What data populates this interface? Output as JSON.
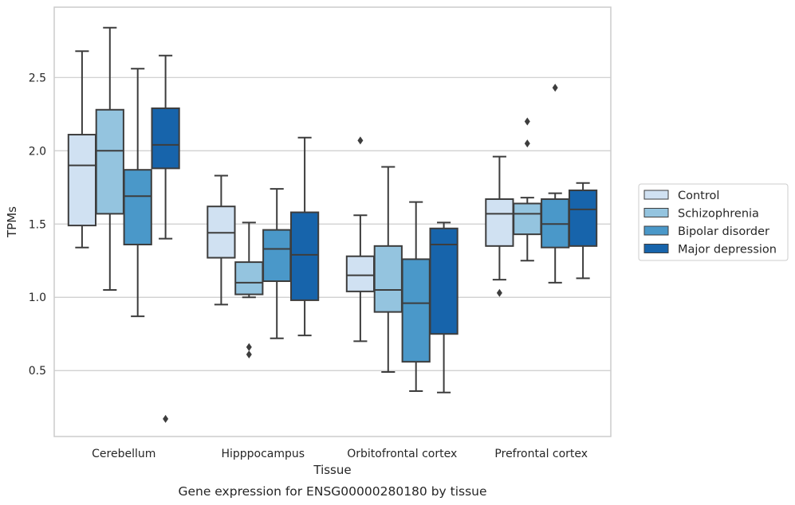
{
  "caption": "Gene expression for ENSG00000280180 by tissue",
  "chart_data": {
    "type": "box",
    "xlabel": "Tissue",
    "ylabel": "TPMs",
    "ylim": [
      0.05,
      2.98
    ],
    "yticks": [
      "0.5",
      "1.0",
      "1.5",
      "2.0",
      "2.5"
    ],
    "grid": "horizontal",
    "legend_position": "right",
    "categories": [
      "Cerebellum",
      "Hipppocampus",
      "Orbitofrontal cortex",
      "Prefrontal cortex"
    ],
    "series": [
      {
        "name": "Control",
        "color": "#d0e1f2",
        "boxes": [
          {
            "min": 1.34,
            "q1": 1.49,
            "median": 1.9,
            "q3": 2.11,
            "max": 2.68,
            "outliers": []
          },
          {
            "min": 0.95,
            "q1": 1.27,
            "median": 1.44,
            "q3": 1.62,
            "max": 1.83,
            "outliers": []
          },
          {
            "min": 0.7,
            "q1": 1.04,
            "median": 1.15,
            "q3": 1.28,
            "max": 1.56,
            "outliers": [
              2.07
            ]
          },
          {
            "min": 1.12,
            "q1": 1.35,
            "median": 1.57,
            "q3": 1.67,
            "max": 1.96,
            "outliers": [
              1.03
            ]
          }
        ]
      },
      {
        "name": "Schizophrenia",
        "color": "#94c4df",
        "boxes": [
          {
            "min": 1.05,
            "q1": 1.57,
            "median": 2.0,
            "q3": 2.28,
            "max": 2.84,
            "outliers": []
          },
          {
            "min": 1.0,
            "q1": 1.02,
            "median": 1.1,
            "q3": 1.24,
            "max": 1.51,
            "outliers": [
              0.66,
              0.61
            ]
          },
          {
            "min": 0.49,
            "q1": 0.9,
            "median": 1.05,
            "q3": 1.35,
            "max": 1.89,
            "outliers": []
          },
          {
            "min": 1.25,
            "q1": 1.43,
            "median": 1.57,
            "q3": 1.64,
            "max": 1.68,
            "outliers": [
              2.2,
              2.05
            ]
          }
        ]
      },
      {
        "name": "Bipolar disorder",
        "color": "#4a98c9",
        "boxes": [
          {
            "min": 0.87,
            "q1": 1.36,
            "median": 1.69,
            "q3": 1.87,
            "max": 2.56,
            "outliers": []
          },
          {
            "min": 0.72,
            "q1": 1.11,
            "median": 1.33,
            "q3": 1.46,
            "max": 1.74,
            "outliers": []
          },
          {
            "min": 0.36,
            "q1": 0.56,
            "median": 0.96,
            "q3": 1.26,
            "max": 1.65,
            "outliers": []
          },
          {
            "min": 1.1,
            "q1": 1.34,
            "median": 1.5,
            "q3": 1.67,
            "max": 1.71,
            "outliers": [
              2.43
            ]
          }
        ]
      },
      {
        "name": "Major depression",
        "color": "#1764ab",
        "boxes": [
          {
            "min": 1.4,
            "q1": 1.88,
            "median": 2.04,
            "q3": 2.29,
            "max": 2.65,
            "outliers": [
              0.17
            ]
          },
          {
            "min": 0.74,
            "q1": 0.98,
            "median": 1.29,
            "q3": 1.58,
            "max": 2.09,
            "outliers": []
          },
          {
            "min": 0.35,
            "q1": 0.75,
            "median": 1.36,
            "q3": 1.47,
            "max": 1.51,
            "outliers": []
          },
          {
            "min": 1.13,
            "q1": 1.35,
            "median": 1.6,
            "q3": 1.73,
            "max": 1.78,
            "outliers": []
          }
        ]
      }
    ]
  }
}
